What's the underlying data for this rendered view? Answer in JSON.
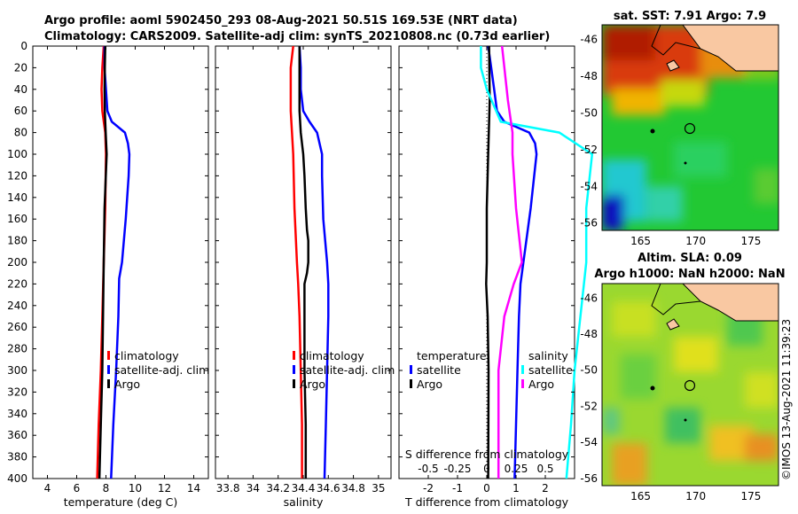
{
  "header": {
    "line1": "Argo profile: aoml 5902450_293 08-Aug-2021 50.51S 169.53E (NRT data)",
    "line2": "Climatology: CARS2009. Satellite-adj clim: synTS_20210808.nc (0.73d earlier)"
  },
  "timestamp": "©IMOS 13-Aug-2021 11:39:23",
  "colors": {
    "climatology": "#ff0000",
    "satellite": "#0000ff",
    "argo": "#000000",
    "salinity_diff": "#ff00ff",
    "satellite_s_diff": "#00ffff"
  },
  "chart_data": [
    {
      "type": "line",
      "id": "temperature",
      "xlabel": "temperature (deg C)",
      "ylabel": "",
      "xlim": [
        3,
        15
      ],
      "ylim": [
        400,
        0
      ],
      "xticks": [
        "4",
        "6",
        "8",
        "10",
        "12",
        "14"
      ],
      "yticks": [
        "0",
        "20",
        "40",
        "60",
        "80",
        "100",
        "120",
        "140",
        "160",
        "180",
        "200",
        "220",
        "240",
        "260",
        "280",
        "300",
        "320",
        "340",
        "360",
        "380",
        "400"
      ],
      "legend": [
        "climatology",
        "satellite-adj. clim",
        "Argo"
      ],
      "series": [
        {
          "name": "climatology",
          "depth": [
            0,
            20,
            40,
            60,
            80,
            100,
            150,
            200,
            250,
            300,
            350,
            400
          ],
          "values": [
            7.85,
            7.75,
            7.7,
            7.75,
            7.95,
            8.0,
            7.95,
            7.85,
            7.75,
            7.65,
            7.5,
            7.4
          ]
        },
        {
          "name": "satellite-adj. clim",
          "depth": [
            0,
            20,
            40,
            60,
            70,
            80,
            90,
            100,
            120,
            160,
            200,
            215,
            250,
            300,
            350,
            400
          ],
          "values": [
            7.9,
            7.9,
            8.0,
            8.1,
            8.4,
            9.3,
            9.5,
            9.6,
            9.55,
            9.35,
            9.1,
            8.9,
            8.85,
            8.7,
            8.5,
            8.35
          ]
        },
        {
          "name": "Argo",
          "depth": [
            0,
            20,
            40,
            60,
            80,
            100,
            150,
            200,
            250,
            300,
            350,
            400
          ],
          "values": [
            7.95,
            7.92,
            7.9,
            7.92,
            7.98,
            8.05,
            7.9,
            7.85,
            7.8,
            7.75,
            7.65,
            7.55
          ]
        }
      ]
    },
    {
      "type": "line",
      "id": "salinity",
      "xlabel": "salinity",
      "ylabel": "",
      "xlim": [
        33.7,
        35.1
      ],
      "ylim": [
        400,
        0
      ],
      "xticks": [
        "33.8",
        "34",
        "34.2",
        "34.4",
        "34.6",
        "34.8",
        "35"
      ],
      "legend": [
        "climatology",
        "satellite-adj. clim",
        "Argo"
      ],
      "series": [
        {
          "name": "climatology",
          "depth": [
            0,
            20,
            40,
            60,
            80,
            100,
            150,
            200,
            220,
            250,
            300,
            350,
            400
          ],
          "values": [
            34.32,
            34.3,
            34.3,
            34.3,
            34.31,
            34.32,
            34.33,
            34.35,
            34.36,
            34.37,
            34.38,
            34.39,
            34.39
          ]
        },
        {
          "name": "satellite-adj. clim",
          "depth": [
            0,
            20,
            40,
            60,
            70,
            80,
            90,
            100,
            120,
            160,
            200,
            220,
            250,
            300,
            350,
            400
          ],
          "values": [
            34.37,
            34.38,
            34.38,
            34.4,
            34.45,
            34.51,
            34.53,
            34.55,
            34.55,
            34.56,
            34.59,
            34.6,
            34.6,
            34.59,
            34.58,
            34.57
          ]
        },
        {
          "name": "Argo",
          "depth": [
            0,
            20,
            40,
            60,
            80,
            100,
            120,
            150,
            170,
            180,
            200,
            210,
            220,
            250,
            300,
            350,
            400
          ],
          "values": [
            34.37,
            34.37,
            34.37,
            34.37,
            34.38,
            34.4,
            34.41,
            34.42,
            34.43,
            34.44,
            34.44,
            34.43,
            34.41,
            34.41,
            34.41,
            34.42,
            34.42
          ]
        }
      ]
    },
    {
      "type": "line",
      "id": "difference",
      "xlabel": "T difference from climatology",
      "xlabel_top": "S difference from climatology",
      "xlim": [
        -3,
        3
      ],
      "ylim": [
        400,
        0
      ],
      "xticks": [
        "-2",
        "-1",
        "0",
        "1",
        "2"
      ],
      "xticks_top": [
        "-0.5",
        "-0.25",
        "0",
        "0.25",
        "0.5"
      ],
      "legend_left_title": "temperature",
      "legend_right_title": "salinity",
      "legend_left": [
        "satellite",
        "Argo"
      ],
      "legend_right": [
        "satellite",
        "Argo"
      ],
      "series": [
        {
          "name": "T satellite",
          "depth": [
            0,
            20,
            40,
            60,
            70,
            80,
            90,
            100,
            150,
            200,
            220,
            250,
            300,
            350,
            400
          ],
          "values": [
            0.05,
            0.15,
            0.25,
            0.35,
            0.6,
            1.45,
            1.65,
            1.7,
            1.5,
            1.25,
            1.15,
            1.1,
            1.05,
            1.0,
            0.95
          ]
        },
        {
          "name": "T Argo",
          "depth": [
            0,
            50,
            100,
            150,
            200,
            220,
            250,
            300,
            400
          ],
          "values": [
            0.08,
            0.1,
            0.05,
            0.0,
            0.0,
            -0.02,
            0.03,
            0.06,
            0.05
          ]
        },
        {
          "name": "S satellite",
          "depth": [
            0,
            20,
            40,
            60,
            70,
            80,
            100,
            150,
            200,
            250,
            300,
            350,
            400
          ],
          "values": [
            -0.05,
            -0.05,
            0.0,
            0.08,
            0.12,
            0.62,
            0.9,
            0.85,
            0.85,
            0.8,
            0.75,
            0.72,
            0.68
          ]
        },
        {
          "name": "S Argo",
          "depth": [
            0,
            50,
            80,
            100,
            150,
            200,
            220,
            250,
            300,
            400
          ],
          "values": [
            0.13,
            0.18,
            0.22,
            0.22,
            0.25,
            0.3,
            0.23,
            0.15,
            0.1,
            0.1
          ]
        }
      ]
    },
    {
      "type": "heatmap",
      "id": "sst_map",
      "title": "sat. SST: 7.91 Argo: 7.9",
      "xticks": [
        "165",
        "170",
        "175"
      ],
      "yticks": [
        "-46",
        "-48",
        "-50",
        "-52",
        "-54",
        "-56"
      ]
    },
    {
      "type": "heatmap",
      "id": "sla_map",
      "title_line1": "Altim. SLA: 0.09",
      "title_line2": "Argo h1000: NaN h2000: NaN",
      "xticks": [
        "165",
        "170",
        "175"
      ],
      "yticks": [
        "-46",
        "-48",
        "-50",
        "-52",
        "-54",
        "-56"
      ]
    }
  ]
}
